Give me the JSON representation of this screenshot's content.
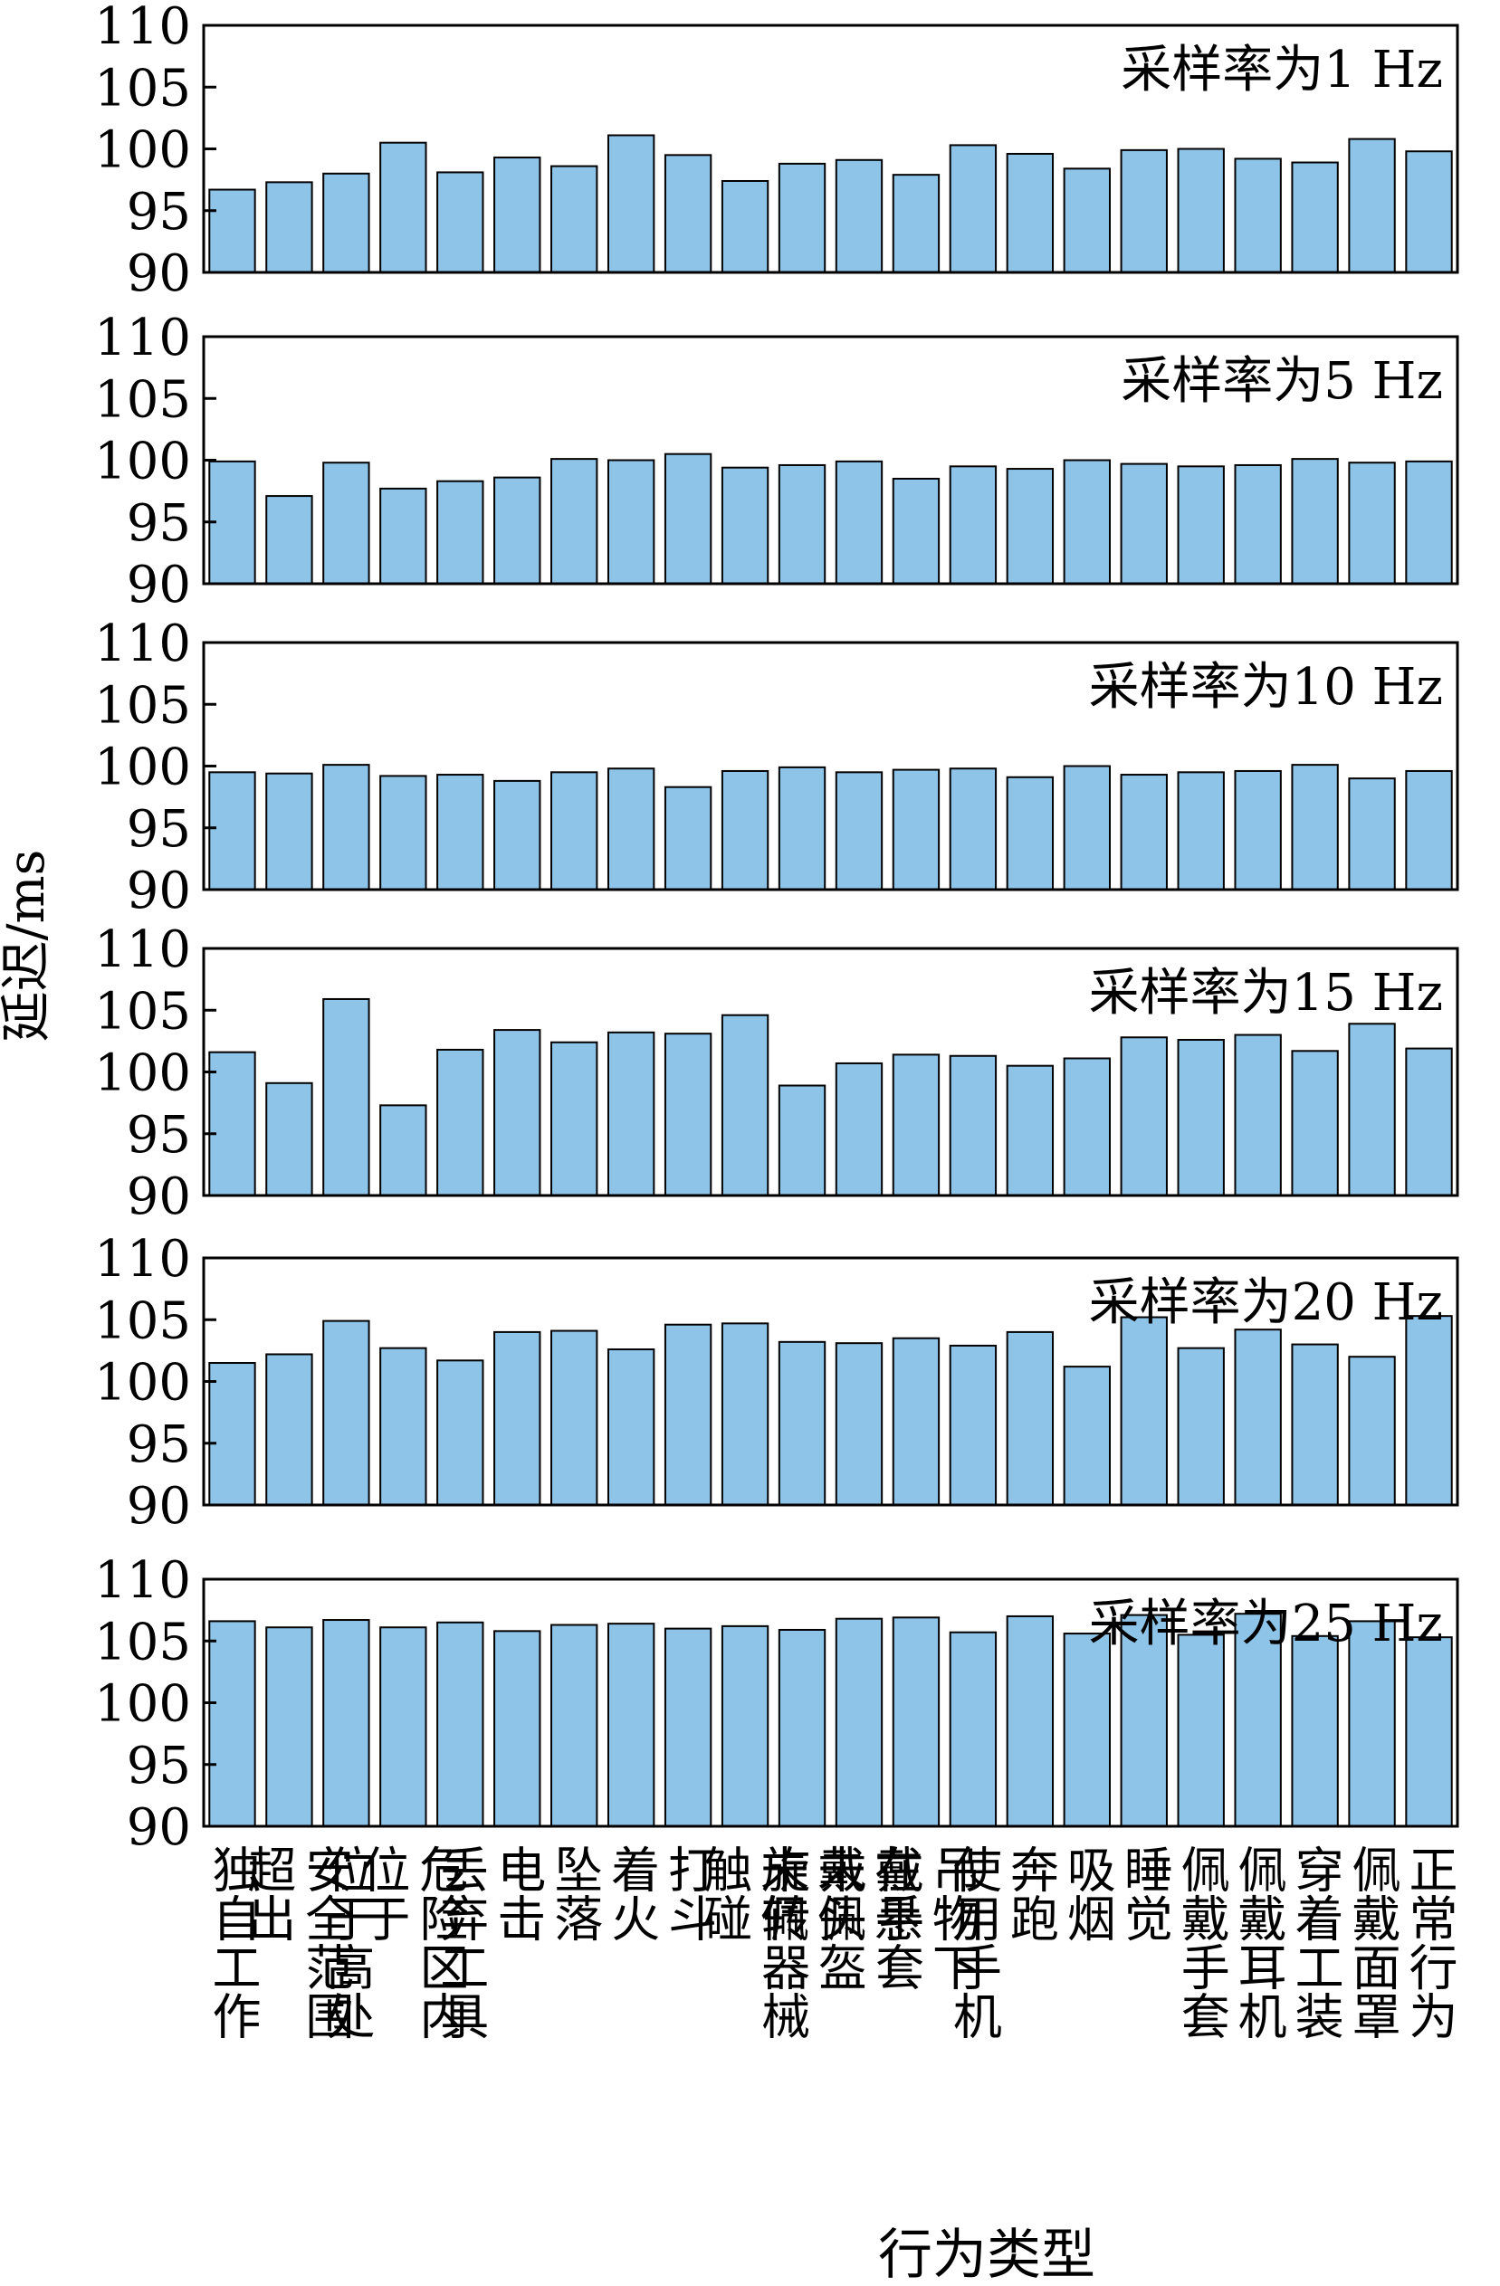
{
  "ylabel": "延迟/ms",
  "xlabel": "行为类型",
  "chart_data": {
    "type": "bar",
    "layout": "six stacked panels sharing the x axis",
    "categories": [
      "独自工作",
      "超出安全范围",
      "位于高处",
      "位于危险区内",
      "丢弃工具",
      "电击",
      "坠落",
      "着火",
      "打斗",
      "触碰旋转器械",
      "未佩戴头盔",
      "未佩戴手套",
      "在悬吊物下",
      "使用手机",
      "奔跑",
      "吸烟",
      "睡觉",
      "佩戴手套",
      "佩戴耳机",
      "穿着工装",
      "佩戴面罩",
      "正常行为"
    ],
    "category_label_lines": [
      [
        "独自工作"
      ],
      [
        "超出",
        "安全范围"
      ],
      [
        "位于高处"
      ],
      [
        "位于",
        "危险区内"
      ],
      [
        "丢弃工具"
      ],
      [
        "电击"
      ],
      [
        "坠落"
      ],
      [
        "着火"
      ],
      [
        "打斗"
      ],
      [
        "触碰",
        "旋转器械"
      ],
      [
        "未佩",
        "戴头盔"
      ],
      [
        "未佩",
        "戴手套"
      ],
      [
        "在悬",
        "吊物下"
      ],
      [
        "使用手机"
      ],
      [
        "奔跑"
      ],
      [
        "吸烟"
      ],
      [
        "睡觉"
      ],
      [
        "佩戴手套"
      ],
      [
        "佩戴耳机"
      ],
      [
        "穿着工装"
      ],
      [
        "佩戴面罩"
      ],
      [
        "正常行为"
      ]
    ],
    "ylim": [
      90,
      110
    ],
    "yticks": [
      90,
      95,
      100,
      105,
      110
    ],
    "bar_color": "#8ec4e8",
    "bar_edge_color": "#000000",
    "grid": false,
    "panels": [
      {
        "title": "采样率为1 Hz",
        "values": [
          96.7,
          97.3,
          98.0,
          100.5,
          98.1,
          99.3,
          98.6,
          101.1,
          99.5,
          97.4,
          98.8,
          99.1,
          97.9,
          100.3,
          99.6,
          98.4,
          99.9,
          100.0,
          99.2,
          98.9,
          100.8,
          99.8
        ]
      },
      {
        "title": "采样率为5 Hz",
        "values": [
          99.9,
          97.1,
          99.8,
          97.7,
          98.3,
          98.6,
          100.1,
          100.0,
          100.5,
          99.4,
          99.6,
          99.9,
          98.5,
          99.5,
          99.3,
          100.0,
          99.7,
          99.5,
          99.6,
          100.1,
          99.8,
          99.9
        ]
      },
      {
        "title": "采样率为10 Hz",
        "values": [
          99.5,
          99.4,
          100.1,
          99.2,
          99.3,
          98.8,
          99.5,
          99.8,
          98.3,
          99.6,
          99.9,
          99.5,
          99.7,
          99.8,
          99.1,
          100.0,
          99.3,
          99.5,
          99.6,
          100.1,
          99.0,
          99.6
        ]
      },
      {
        "title": "采样率为15 Hz",
        "values": [
          101.6,
          99.1,
          105.9,
          97.3,
          101.8,
          103.4,
          102.4,
          103.2,
          103.1,
          104.6,
          98.9,
          100.7,
          101.4,
          101.3,
          100.5,
          101.1,
          102.8,
          102.6,
          103.0,
          101.7,
          103.9,
          101.9
        ]
      },
      {
        "title": "采样率为20 Hz",
        "values": [
          101.5,
          102.2,
          104.9,
          102.7,
          101.7,
          104.0,
          104.1,
          102.6,
          104.6,
          104.7,
          103.2,
          103.1,
          103.5,
          102.9,
          104.0,
          101.2,
          105.2,
          102.7,
          104.2,
          103.0,
          102.0,
          105.3
        ]
      },
      {
        "title": "采样率为25 Hz",
        "values": [
          106.6,
          106.1,
          106.7,
          106.1,
          106.5,
          105.8,
          106.3,
          106.4,
          106.0,
          106.2,
          105.9,
          106.8,
          106.9,
          105.7,
          107.0,
          105.6,
          107.1,
          105.5,
          107.2,
          105.4,
          106.6,
          105.3
        ]
      }
    ]
  }
}
